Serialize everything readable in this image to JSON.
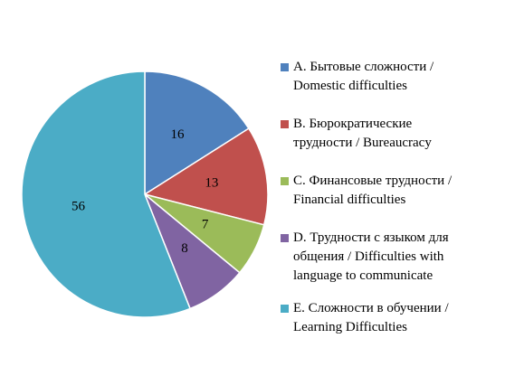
{
  "chart_data": {
    "type": "pie",
    "title": "",
    "legend_position": "right",
    "slices": [
      {
        "label": "A. Бытовые сложности / Domestic difficulties",
        "label_lines": [
          "A. Бытовые сложности /",
          "Domestic difficulties"
        ],
        "value": 16,
        "color": "#4f81bd"
      },
      {
        "label": "B. Бюрократические трудности / Bureaucracy",
        "label_lines": [
          "B. Бюрократические",
          "трудности / Bureaucracy"
        ],
        "value": 13,
        "color": "#c0504d"
      },
      {
        "label": "C. Финансовые трудности / Financial difficulties",
        "label_lines": [
          "C. Финансовые трудности /",
          "Financial difficulties"
        ],
        "value": 7,
        "color": "#9bbb59"
      },
      {
        "label": "D. Трудности с языком для общения / Difficulties with language to communicate",
        "label_lines": [
          "D. Трудности с языком для",
          "общения / Difficulties with",
          "language to communicate"
        ],
        "value": 8,
        "color": "#8064a2"
      },
      {
        "label": "E. Сложности в обучении / Learning Difficulties",
        "label_lines": [
          "E. Сложности в обучении /",
          "Learning Difficulties"
        ],
        "value": 56,
        "color": "#4bacc6"
      }
    ]
  }
}
